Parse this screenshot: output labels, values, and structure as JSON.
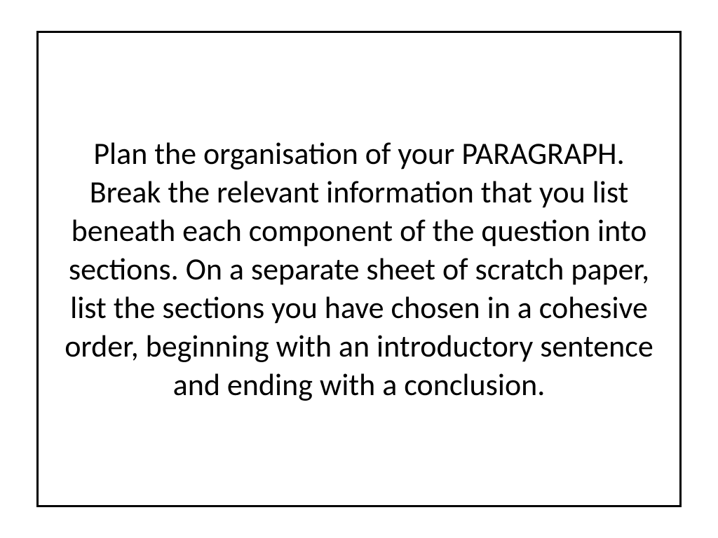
{
  "slide": {
    "content_text": "Plan the organisation of your PARAGRAPH. Break the relevant information that you list beneath each component of the question into sections. On a separate sheet of scratch paper, list the sections you have chosen in a cohesive order, beginning with an introductory sentence and ending with a conclusion.",
    "border_color": "#000000",
    "border_width": 3,
    "background_color": "#ffffff",
    "text_color": "#000000",
    "font_size": 44,
    "text_align": "center"
  }
}
